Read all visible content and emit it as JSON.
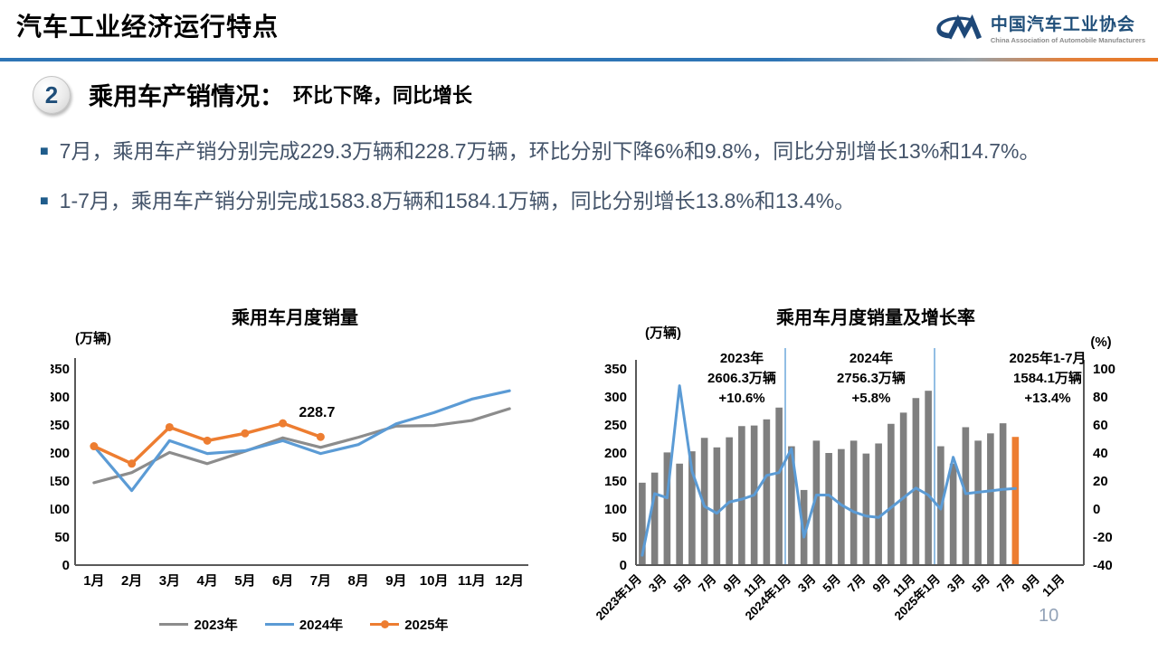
{
  "header": {
    "title": "汽车工业经济运行特点",
    "logo": {
      "org_cn": "中国汽车工业协会",
      "org_en": "China Association of Automobile Manufacturers"
    }
  },
  "section": {
    "number": "2",
    "title": "乘用车产销情况：",
    "subtitle": "环比下降，同比增长"
  },
  "bullet_char": "■",
  "bullets": [
    {
      "text": "7月，乘用车产销分别完成229.3万辆和228.7万辆，环比分别下降6%和9.8%，同比分别增长13%和14.7%。"
    },
    {
      "text": "1-7月，乘用车产销分别完成1583.8万辆和1584.1万辆，同比分别增长13.8%和13.4%。"
    }
  ],
  "page_number": "10",
  "colors": {
    "accent_blue": "#2E75B6",
    "accent_orange": "#ED7D31",
    "brand_navy": "#1F4E79",
    "body_text_navy": "#44546A",
    "line_gray": "#8C8C8C",
    "line_blue": "#5B9BD5",
    "bar_gray": "#7F7F7F"
  },
  "chart_data": [
    {
      "type": "line",
      "title": "乘用车月度销量",
      "unit_label": "(万辆)",
      "categories": [
        "1月",
        "2月",
        "3月",
        "4月",
        "5月",
        "6月",
        "7月",
        "8月",
        "9月",
        "10月",
        "11月",
        "12月"
      ],
      "ylim": [
        0,
        350
      ],
      "yticks": [
        0,
        50,
        100,
        150,
        200,
        250,
        300,
        350
      ],
      "grid": false,
      "legend_position": "bottom",
      "series": [
        {
          "name": "2023年",
          "color": "#8C8C8C",
          "markers": false,
          "values": [
            147,
            165,
            201,
            181,
            203,
            227,
            210,
            228,
            248,
            249,
            258,
            279
          ]
        },
        {
          "name": "2024年",
          "color": "#5B9BD5",
          "markers": false,
          "values": [
            212,
            133,
            222,
            199,
            204,
            222,
            199,
            215,
            252,
            272,
            296,
            311
          ]
        },
        {
          "name": "2025年",
          "color": "#ED7D31",
          "markers": true,
          "values": [
            212,
            181,
            246,
            222,
            235,
            253,
            228.7
          ]
        }
      ],
      "annotation": {
        "text": "228.7",
        "series_index": 2,
        "point_index": 6
      }
    },
    {
      "type": "bar+line",
      "title": "乘用车月度销量及增长率",
      "unit_left": "(万辆)",
      "unit_right": "(%)",
      "n_slots": 36,
      "x_labels": [
        "2023年1月",
        "3月",
        "5月",
        "7月",
        "9月",
        "11月",
        "2024年1月",
        "3月",
        "5月",
        "7月",
        "9月",
        "11月",
        "2025年1月",
        "3月",
        "5月",
        "7月",
        "9月",
        "11月"
      ],
      "ylim_left": [
        0,
        350
      ],
      "ylim_right": [
        -40,
        100
      ],
      "yticks_left": [
        0,
        50,
        100,
        150,
        200,
        250,
        300,
        350
      ],
      "yticks_right": [
        -40,
        -20,
        0,
        20,
        40,
        60,
        80,
        100
      ],
      "grid": false,
      "bars": {
        "color": "#7F7F7F",
        "highlight_color": "#ED7D31",
        "highlight_index": 30,
        "values": [
          147,
          165,
          201,
          181,
          203,
          227,
          210,
          228,
          248,
          249,
          260,
          281,
          212,
          134,
          222,
          200,
          207,
          222,
          199,
          217,
          252,
          272,
          298,
          311,
          212,
          181,
          246,
          222,
          235,
          253,
          228.7
        ]
      },
      "line": {
        "color": "#5B9BD5",
        "values": [
          -33,
          11,
          8,
          88,
          27,
          2,
          -3,
          5,
          7,
          10,
          24,
          26,
          43,
          -20,
          10,
          10,
          3,
          -2,
          -5,
          -6,
          1,
          8,
          15,
          10,
          0,
          37,
          11,
          12,
          13,
          14,
          14.7
        ]
      },
      "dividers": [
        12,
        24
      ],
      "annotations": [
        {
          "lines": [
            "2023年",
            "2606.3万辆",
            "+10.6%"
          ]
        },
        {
          "lines": [
            "2024年",
            "2756.3万辆",
            "+5.8%"
          ]
        },
        {
          "lines": [
            "2025年1-7月",
            "1584.1万辆",
            "+13.4%"
          ]
        }
      ]
    }
  ]
}
